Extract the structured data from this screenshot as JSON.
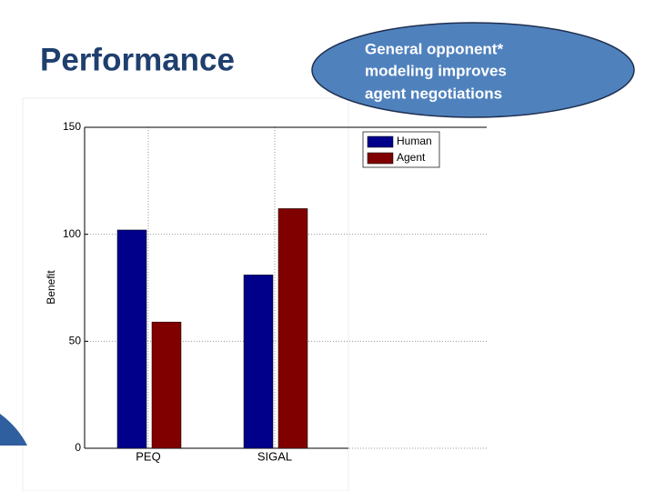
{
  "slide": {
    "title": "Performance",
    "callout_lines": [
      "General opponent*",
      "modeling improves",
      "agent negotiations"
    ]
  },
  "chart_data": {
    "type": "bar",
    "y_label": "Benefit",
    "categories": [
      "PEQ",
      "SIGAL"
    ],
    "series": [
      {
        "name": "Human",
        "color": "#00008b",
        "values": [
          102,
          81
        ]
      },
      {
        "name": "Agent",
        "color": "#800000",
        "values": [
          59,
          112
        ]
      }
    ],
    "ylim": [
      0,
      150
    ],
    "yticks": [
      0,
      50,
      100,
      150
    ],
    "grid": true,
    "legend": "upper right"
  }
}
